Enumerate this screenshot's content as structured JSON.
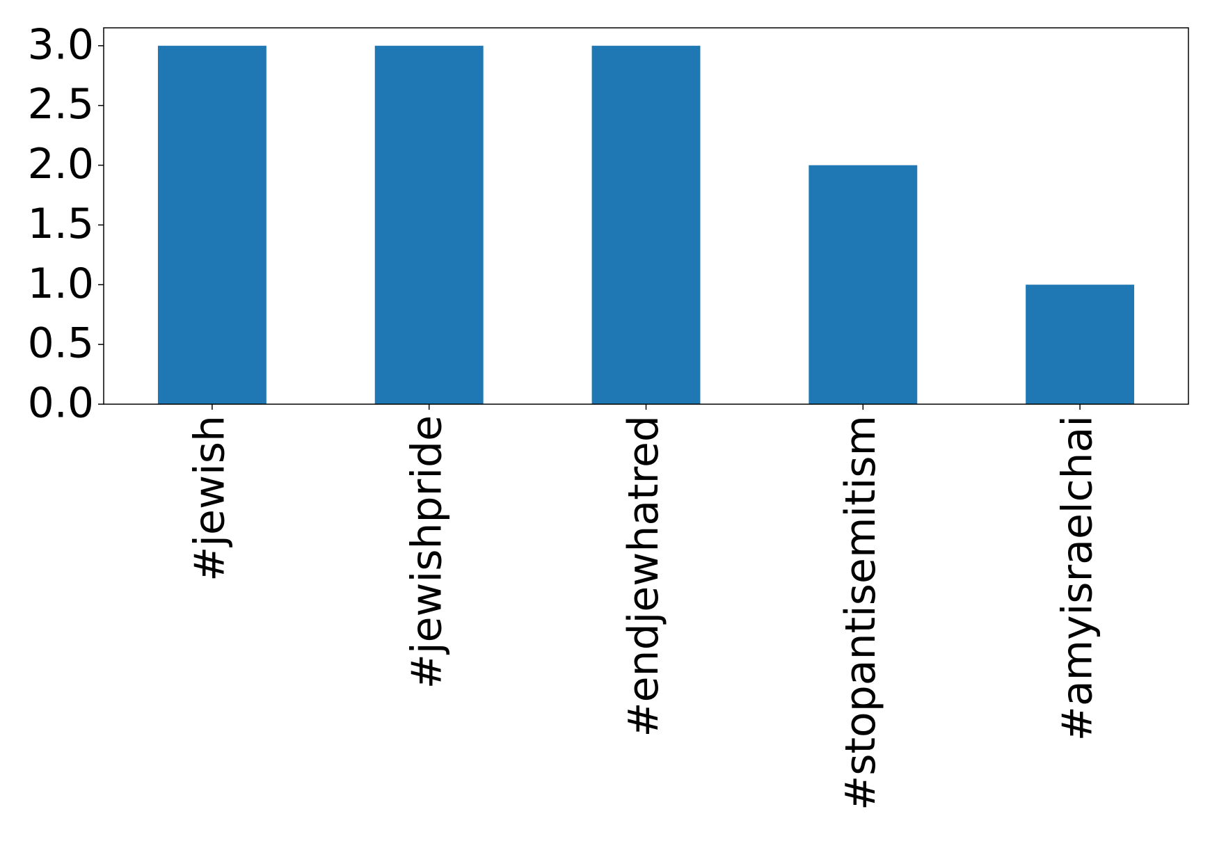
{
  "chart_data": {
    "type": "bar",
    "categories": [
      "#jewish",
      "#jewishpride",
      "#endjewhatred",
      "#stopantisemitism",
      "#amyisraelchai"
    ],
    "values": [
      3,
      3,
      3,
      2,
      1
    ],
    "color": "#1f77b4",
    "ylim": [
      0,
      3.15
    ],
    "yticks": [
      {
        "value": 0,
        "label": "0.0"
      },
      0.5,
      {
        "value": 1,
        "label": "1.0"
      },
      1.5,
      {
        "value": 2,
        "label": "2.0"
      },
      2.5,
      {
        "value": 3,
        "label": "3.0"
      }
    ],
    "grid": false
  }
}
